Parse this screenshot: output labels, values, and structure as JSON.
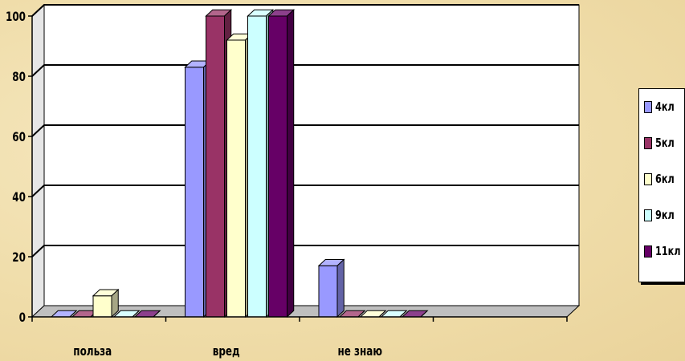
{
  "chart_data": {
    "type": "bar",
    "categories": [
      "польза",
      "вред",
      "не знаю",
      ""
    ],
    "series": [
      {
        "name": "4кл",
        "color": "#9999ff",
        "values": [
          0,
          83,
          17,
          0
        ]
      },
      {
        "name": "5кл",
        "color": "#993366",
        "values": [
          0,
          100,
          0,
          0
        ]
      },
      {
        "name": "6кл",
        "color": "#ffffcc",
        "values": [
          7,
          92,
          0,
          0
        ]
      },
      {
        "name": "9кл",
        "color": "#ccffff",
        "values": [
          0,
          100,
          0,
          0
        ]
      },
      {
        "name": "11кл",
        "color": "#660066",
        "values": [
          0,
          100,
          0,
          0
        ]
      }
    ],
    "ylim": [
      0,
      100
    ],
    "yticks": [
      0,
      20,
      40,
      60,
      80,
      100
    ],
    "grid": true,
    "legend": "right",
    "title": "",
    "xlabel": "",
    "ylabel": ""
  }
}
